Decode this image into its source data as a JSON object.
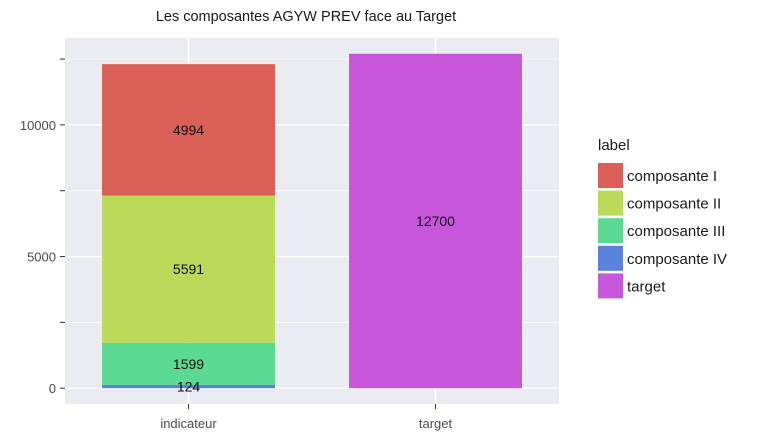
{
  "chart_data": {
    "type": "bar",
    "stacked": true,
    "title": "Les composantes AGYW PREV face au Target",
    "xlabel": "",
    "ylabel": "",
    "categories": [
      "indicateur",
      "target"
    ],
    "series": [
      {
        "name": "composante I",
        "values": [
          4994,
          0
        ],
        "color": "#DA5F57"
      },
      {
        "name": "composante II",
        "values": [
          5591,
          0
        ],
        "color": "#BCDA5A"
      },
      {
        "name": "composante III",
        "values": [
          1599,
          0
        ],
        "color": "#5ADA92"
      },
      {
        "name": "composante IV",
        "values": [
          124,
          0
        ],
        "color": "#5A82DA"
      },
      {
        "name": "target",
        "values": [
          0,
          12700
        ],
        "color": "#C657DA"
      }
    ],
    "stack_order_bottom_to_top": [
      "composante IV",
      "composante III",
      "composante II",
      "composante I",
      "target"
    ],
    "ylim": [
      -600,
      13300
    ],
    "yticks": [
      0,
      5000,
      10000
    ],
    "ytick_labels": [
      "0",
      "5000",
      "10000"
    ],
    "minor_yticks": [
      2500,
      7500,
      12500
    ],
    "grid": true,
    "panel_background": "#EBEBF2",
    "legend": {
      "title": "label",
      "position": "right"
    }
  }
}
